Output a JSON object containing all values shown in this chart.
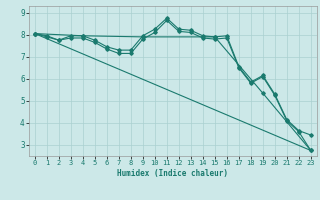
{
  "title": "",
  "xlabel": "Humidex (Indice chaleur)",
  "background_color": "#cce8e8",
  "grid_color": "#aad0d0",
  "line_color": "#1a7a6e",
  "x_values": [
    0,
    1,
    2,
    3,
    4,
    5,
    6,
    7,
    8,
    9,
    10,
    11,
    12,
    13,
    14,
    15,
    16,
    17,
    18,
    19,
    20,
    21,
    22,
    23
  ],
  "line1": [
    8.05,
    7.95,
    7.75,
    7.95,
    7.95,
    7.75,
    7.45,
    7.3,
    7.3,
    7.95,
    8.25,
    8.75,
    8.25,
    8.2,
    7.95,
    7.9,
    7.95,
    6.55,
    5.85,
    6.15,
    5.3,
    4.15,
    3.65,
    3.45
  ],
  "line2": [
    8.05,
    7.9,
    7.75,
    7.85,
    7.85,
    7.65,
    7.35,
    7.15,
    7.15,
    7.8,
    8.1,
    8.65,
    8.15,
    8.1,
    7.85,
    7.8,
    7.85,
    6.5,
    5.8,
    6.1,
    5.25,
    4.1,
    3.6,
    2.75
  ],
  "line3_x": [
    0,
    4,
    9,
    15,
    19,
    23
  ],
  "line3_y": [
    8.05,
    7.95,
    7.9,
    7.9,
    5.35,
    2.75
  ],
  "line4_x": [
    0,
    23
  ],
  "line4_y": [
    8.05,
    2.75
  ],
  "ylim": [
    2.5,
    9.3
  ],
  "xlim": [
    -0.5,
    23.5
  ],
  "yticks": [
    3,
    4,
    5,
    6,
    7,
    8,
    9
  ],
  "xticks": [
    0,
    1,
    2,
    3,
    4,
    5,
    6,
    7,
    8,
    9,
    10,
    11,
    12,
    13,
    14,
    15,
    16,
    17,
    18,
    19,
    20,
    21,
    22,
    23
  ],
  "xlabel_fontsize": 5.5,
  "tick_fontsize": 5,
  "marker_size": 1.8,
  "line_width": 0.8
}
